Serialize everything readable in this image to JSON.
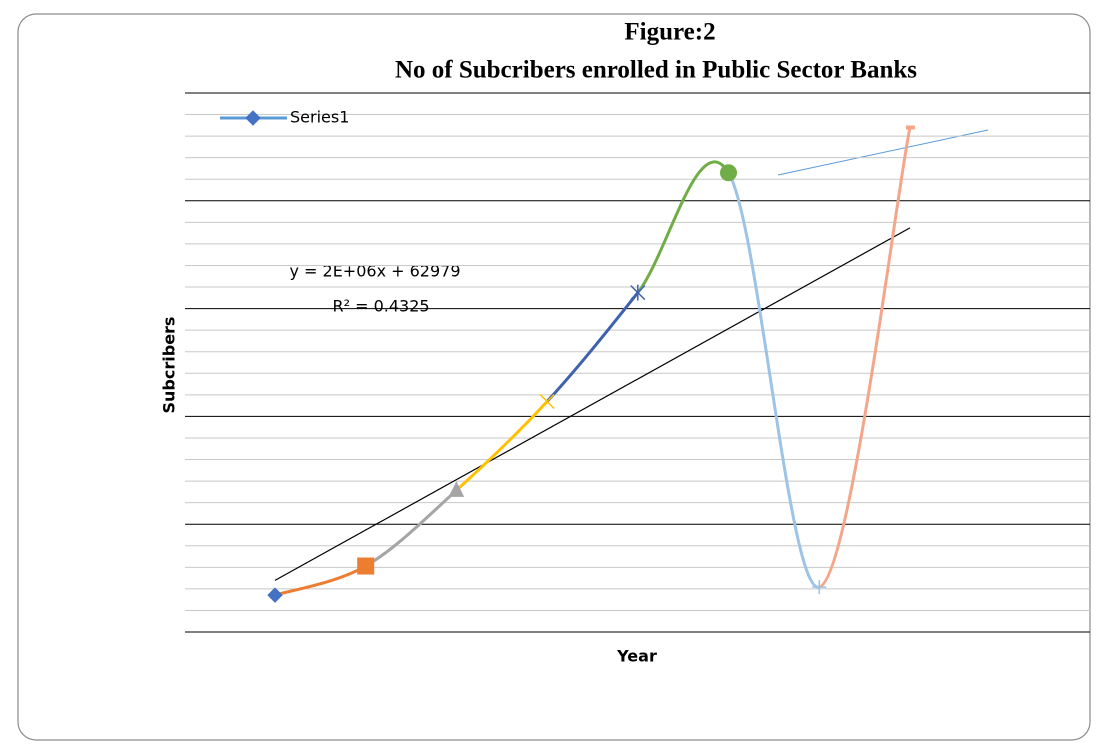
{
  "chart_data": {
    "type": "line",
    "title": "Figure:2",
    "subtitle": "No of Subcribers enrolled in Public Sector Banks",
    "x_label": "Year",
    "y_label": "Subcribers",
    "categories": [
      null,
      null,
      null,
      null,
      null,
      null,
      null,
      null
    ],
    "series": [
      {
        "name": "Series1",
        "color": "#5b9bd5",
        "values": [
          1710000,
          3060000,
          6570000,
          10690000,
          15740000,
          21300000,
          2080000,
          23400000
        ],
        "point_colors": [
          "#4472c4",
          "#ed7d31",
          "#a5a5a5",
          "#ffc000",
          "#3f62ad",
          "#70ad47",
          "#9dc3e6",
          "#f4a68a"
        ],
        "markers": [
          "diamond",
          "square",
          "triangle",
          "x",
          "star",
          "circle",
          "plus",
          "dash"
        ]
      }
    ],
    "smooth": true,
    "trendline": {
      "type": "linear",
      "color": "#000000",
      "equation": "y = 2E+06x + 62979",
      "r_squared": "R² = 0.4325"
    },
    "ylim": [
      0,
      25000000
    ],
    "yticks": [
      0,
      5000000,
      10000000,
      15000000,
      20000000,
      25000000
    ],
    "grid": true,
    "minor_grid": true,
    "legend": "top-left"
  }
}
